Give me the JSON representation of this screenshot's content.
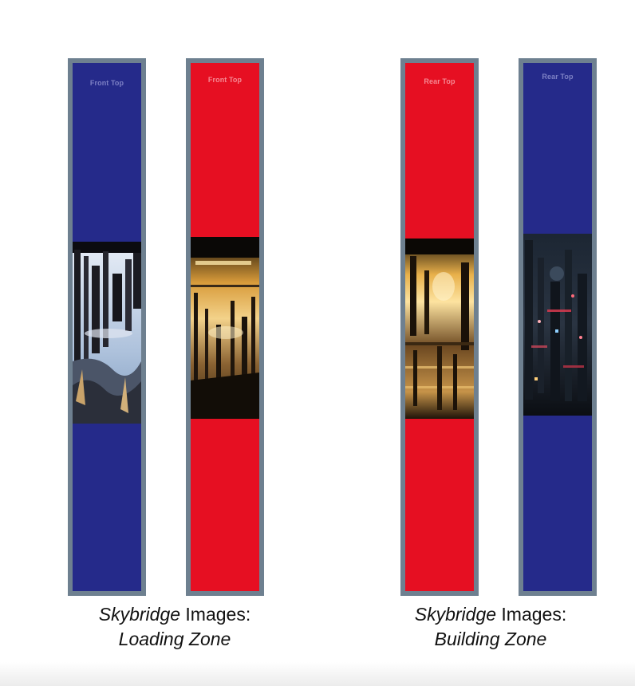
{
  "colors": {
    "blue": "#252a8a",
    "red": "#e60f22",
    "frame": "#6e8090",
    "label_on_blue": "#7d80c4",
    "label_on_red": "#f58a94"
  },
  "panels": [
    {
      "label": "Front Top",
      "color": "blue",
      "image": "futuristic-city-daylight-icon"
    },
    {
      "label": "Front Top",
      "color": "red",
      "image": "futuristic-city-golden-icon"
    },
    {
      "label": "Rear Top",
      "color": "red",
      "image": "futuristic-city-amber-icon"
    },
    {
      "label": "Rear Top",
      "color": "blue",
      "image": "futuristic-city-night-icon"
    }
  ],
  "captions": [
    {
      "italic": "Skybridge",
      "rest": " Images:",
      "line2": "Loading Zone"
    },
    {
      "italic": "Skybridge",
      "rest": " Images:",
      "line2": "Building Zone"
    }
  ]
}
